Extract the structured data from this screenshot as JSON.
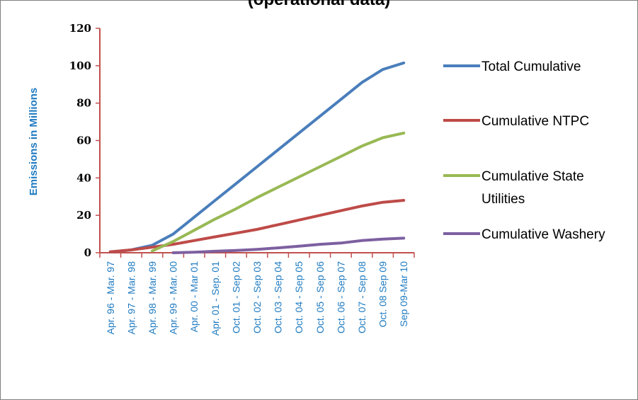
{
  "chart_data": {
    "type": "line",
    "title": "(operational data)",
    "ylabel": "Emissions in Millions",
    "xlabel": "",
    "ylim": [
      0,
      120
    ],
    "yticks": [
      "0",
      "20",
      "40",
      "60",
      "80",
      "100",
      "120"
    ],
    "grid": false,
    "legend_position": "right",
    "categories": [
      "Apr. 96 - Mar. 97",
      "Apr. 97 - Mar. 98",
      "Apr. 98 - Mar. 99",
      "Apr. 99 - Mar. 00",
      "Apr. 00 - Mar 01",
      "Apr. 01 - Sep. 01",
      "Oct. 01 - Sep 02",
      "Oct. 02 - Sep 03",
      "Oct. 03 - Sep 04",
      "Oct. 04 - Sep 05",
      "Oct. 05 - Sep 06",
      "Oct. 06 - Sep 07",
      "Oct. 07 - Sep 08",
      "Oct. 08 Sep 09",
      "Sep 09-Mar 10"
    ],
    "series": [
      {
        "name": "Total Cumulative",
        "color": "#4a7ebb",
        "x": [
          0,
          1,
          2,
          3,
          4,
          5,
          6,
          7,
          8,
          9,
          10,
          11,
          12,
          13,
          14
        ],
        "values": [
          0.5,
          1.5,
          4,
          10,
          19,
          28,
          37,
          46,
          55,
          64,
          73,
          82,
          91,
          98,
          101.5
        ]
      },
      {
        "name": "Cumulative NTPC",
        "color": "#be4b48",
        "x": [
          0,
          1,
          2,
          3,
          4,
          5,
          6,
          7,
          8,
          9,
          10,
          11,
          12,
          13,
          14
        ],
        "values": [
          0.5,
          1.5,
          3,
          4.5,
          6.5,
          8.5,
          10.5,
          12.5,
          15,
          17.5,
          20,
          22.5,
          25,
          27,
          28
        ]
      },
      {
        "name": "Cumulative State Utilities",
        "color": "#98b954",
        "x": [
          2,
          3,
          4,
          5,
          6,
          7,
          8,
          9,
          10,
          11,
          12,
          13,
          14
        ],
        "values": [
          1,
          6,
          12,
          18,
          23.5,
          29.5,
          35,
          40.5,
          46,
          51.5,
          57,
          61.5,
          64
        ]
      },
      {
        "name": "Cumulative Washery",
        "color": "#7d60a0",
        "x": [
          3,
          4,
          5,
          6,
          7,
          8,
          9,
          10,
          11,
          12,
          13,
          14
        ],
        "values": [
          0,
          0.3,
          0.8,
          1.2,
          1.8,
          2.6,
          3.5,
          4.5,
          5.2,
          6.5,
          7.3,
          7.8
        ]
      }
    ]
  }
}
